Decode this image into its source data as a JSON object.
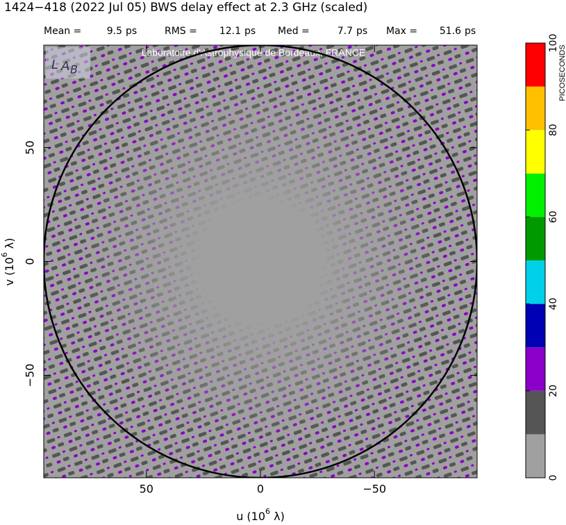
{
  "chart_data": {
    "type": "heatmap",
    "title": "1424−418  (2022 Jul 05)   BWS delay effect at  2.3 GHz (scaled)",
    "stats": [
      {
        "label": "Mean =",
        "value": 9.5,
        "unit": "ps"
      },
      {
        "label": "RMS =",
        "value": 12.1,
        "unit": "ps"
      },
      {
        "label": "Med =",
        "value": 7.7,
        "unit": "ps"
      },
      {
        "label": "Max =",
        "value": 51.6,
        "unit": "ps"
      }
    ],
    "watermark": "Laboratoire d'Astrophysique de Bordeaux, FRANCE",
    "x_label": {
      "text": "u  (10",
      "sup": "6",
      "tail": " λ)"
    },
    "y_label": {
      "text": "v  (10",
      "sup": "6",
      "tail": " λ)"
    },
    "xlim": [
      95,
      -95
    ],
    "ylim": [
      -95,
      95
    ],
    "xticks": [
      50,
      0,
      {
        "value": -50,
        "label": "−50"
      }
    ],
    "yticks": [
      {
        "value": -50,
        "label": "−50"
      },
      0,
      50
    ],
    "circle_radius": 95,
    "colorbar": {
      "label": "PICOSECONDS",
      "levels": [
        0,
        10,
        20,
        30,
        40,
        50,
        60,
        70,
        80,
        90,
        100
      ],
      "colors": [
        "#a0a0a0",
        "#555555",
        "#8a00c8",
        "#0000b4",
        "#00d0e8",
        "#009a00",
        "#00f000",
        "#ffff00",
        "#ffc000",
        "#ff0000"
      ],
      "ticks": [
        0,
        20,
        40,
        60,
        80,
        100
      ]
    }
  }
}
